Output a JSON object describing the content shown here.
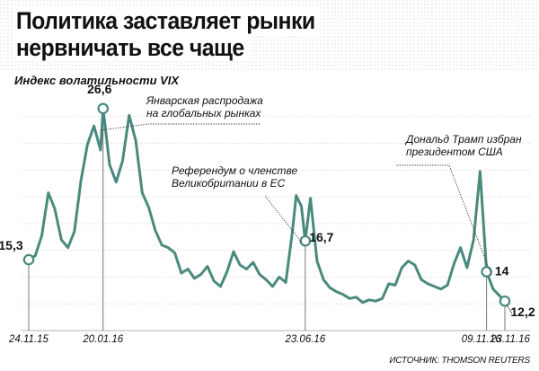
{
  "title_lines": [
    "Политика заставляет рынки",
    "нервничать все чаще"
  ],
  "subtitle": "Индекс волатильности VIX",
  "source": "ИСТОЧНИК: THOMSON REUTERS",
  "colors": {
    "line": "#4a8a7e",
    "text": "#111111",
    "grid": "#bdbdbd"
  },
  "chart_data": {
    "type": "line",
    "title": "Политика заставляет рынки нервничать все чаще",
    "subtitle": "Индекс волатильности VIX",
    "series": [
      {
        "name": "",
        "x": [
          "24.11.15",
          "29.11.15",
          "04.12.15",
          "09.12.15",
          "14.12.15",
          "19.12.15",
          "24.12.15",
          "29.12.15",
          "03.01.16",
          "08.01.16",
          "13.01.16",
          "18.01.16",
          "20.01.16",
          "25.01.16",
          "30.01.16",
          "04.02.16",
          "09.02.16",
          "14.02.16",
          "19.02.16",
          "24.02.16",
          "29.02.16",
          "05.03.16",
          "10.03.16",
          "15.03.16",
          "20.03.16",
          "25.03.16",
          "30.03.16",
          "04.04.16",
          "09.04.16",
          "14.04.16",
          "19.04.16",
          "24.04.16",
          "29.04.16",
          "04.05.16",
          "09.05.16",
          "14.05.16",
          "19.05.16",
          "24.05.16",
          "29.05.16",
          "03.06.16",
          "08.06.16",
          "13.06.16",
          "16.06.16",
          "20.06.16",
          "23.06.16",
          "27.06.16",
          "02.07.16",
          "07.07.16",
          "12.07.16",
          "17.07.16",
          "22.07.16",
          "27.07.16",
          "01.08.16",
          "06.08.16",
          "11.08.16",
          "16.08.16",
          "21.08.16",
          "26.08.16",
          "31.08.16",
          "05.09.16",
          "10.09.16",
          "15.09.16",
          "20.09.16",
          "25.09.16",
          "30.09.16",
          "05.10.16",
          "10.10.16",
          "15.10.16",
          "20.10.16",
          "25.10.16",
          "30.10.16",
          "04.11.16",
          "09.11.16",
          "14.11.16",
          "19.11.16",
          "23.11.16"
        ],
        "values": [
          15.3,
          15.6,
          17.1,
          20.3,
          19.1,
          16.8,
          16.2,
          17.4,
          21.2,
          23.9,
          25.3,
          23.5,
          26.6,
          22.4,
          21.1,
          22.7,
          26.1,
          24.2,
          20.3,
          19.2,
          17.5,
          16.4,
          16.2,
          15.8,
          14.3,
          14.6,
          13.9,
          14.2,
          14.8,
          13.7,
          13.3,
          14.4,
          15.9,
          14.9,
          14.6,
          15.1,
          14.2,
          13.8,
          13.3,
          14.0,
          13.6,
          17.3,
          20.1,
          19.3,
          16.7,
          19.9,
          15.2,
          13.8,
          13.2,
          12.9,
          12.7,
          12.4,
          12.5,
          12.1,
          12.3,
          12.2,
          12.4,
          13.5,
          13.4,
          14.7,
          15.2,
          14.9,
          13.8,
          13.5,
          13.3,
          13.1,
          13.4,
          15.0,
          16.2,
          14.7,
          16.8,
          21.9,
          14.4,
          13.1,
          12.6,
          12.2
        ]
      }
    ],
    "tick_labels": [
      "24.11.15",
      "20.01.16",
      "23.06.16",
      "09.11.16",
      "23.11.16"
    ],
    "ylim": [
      10,
      28
    ],
    "grid": true,
    "value_labels": [
      {
        "x": "24.11.15",
        "text": "15,3"
      },
      {
        "x": "20.01.16",
        "text": "26,6"
      },
      {
        "x": "23.06.16",
        "text": "16,7"
      },
      {
        "x": "09.11.16",
        "text": "14"
      },
      {
        "x": "23.11.16",
        "text": "12,2"
      }
    ],
    "annotations": [
      {
        "x": "20.01.16",
        "lines": [
          "Январская распродажа",
          "на глобальных рынках"
        ]
      },
      {
        "x": "23.06.16",
        "lines": [
          "Референдум о членстве",
          "Великобритании в ЕС"
        ]
      },
      {
        "x": "09.11.16",
        "lines": [
          "Дональд Трамп избран",
          "президентом США"
        ]
      }
    ]
  }
}
